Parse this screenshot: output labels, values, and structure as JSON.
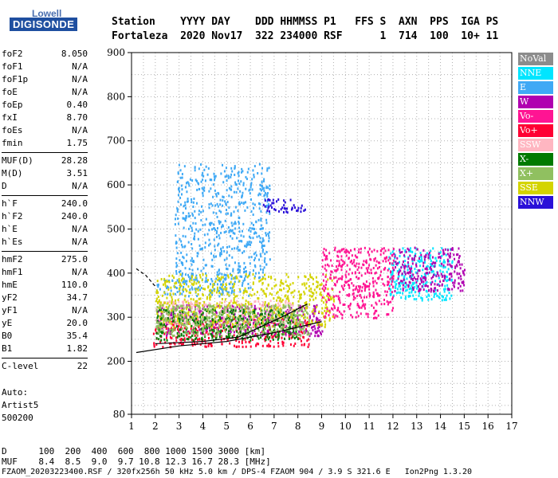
{
  "logo": {
    "top": "Lowell",
    "bottom": "DIGISONDE"
  },
  "header": {
    "line1": "Station    YYYY DAY    DDD HHMMSS P1   FFS S  AXN  PPS  IGA PS",
    "line2": "Fortaleza  2020 Nov17  322 234000 RSF      1  714  100  10+ 11"
  },
  "params": [
    {
      "group": [
        {
          "name": "foF2",
          "value": "8.050"
        },
        {
          "name": "foF1",
          "value": "N/A"
        },
        {
          "name": "foF1p",
          "value": "N/A"
        },
        {
          "name": "foE",
          "value": "N/A"
        },
        {
          "name": "foEp",
          "value": "0.40"
        },
        {
          "name": "fxI",
          "value": "8.70"
        },
        {
          "name": "foEs",
          "value": "N/A"
        },
        {
          "name": "fmin",
          "value": "1.75"
        }
      ]
    },
    {
      "group": [
        {
          "name": "MUF(D)",
          "value": "28.28"
        },
        {
          "name": "M(D)",
          "value": "3.51"
        },
        {
          "name": "D",
          "value": "N/A"
        }
      ]
    },
    {
      "group": [
        {
          "name": "h`F",
          "value": "240.0"
        },
        {
          "name": "h`F2",
          "value": "240.0"
        },
        {
          "name": "h`E",
          "value": "N/A"
        },
        {
          "name": "h`Es",
          "value": "N/A"
        }
      ]
    },
    {
      "group": [
        {
          "name": "hmF2",
          "value": "275.0"
        },
        {
          "name": "hmF1",
          "value": "N/A"
        },
        {
          "name": "hmE",
          "value": "110.0"
        },
        {
          "name": "yF2",
          "value": "34.7"
        },
        {
          "name": "yF1",
          "value": "N/A"
        },
        {
          "name": "yE",
          "value": "20.0"
        },
        {
          "name": "B0",
          "value": "35.4"
        },
        {
          "name": "B1",
          "value": "1.82"
        }
      ]
    },
    {
      "group": [
        {
          "name": "C-level",
          "value": "22"
        }
      ]
    }
  ],
  "auto": {
    "line1": "Auto:",
    "line2": "Artist5",
    "line3": "500200"
  },
  "legend": [
    {
      "label": "NoVal",
      "color": "#8c8c8c"
    },
    {
      "label": "NNE",
      "color": "#00e5ff"
    },
    {
      "label": "E",
      "color": "#3fa9f5"
    },
    {
      "label": "W",
      "color": "#b000b0"
    },
    {
      "label": "Vo-",
      "color": "#ff1493"
    },
    {
      "label": "Vo+",
      "color": "#ff0033"
    },
    {
      "label": "SSW",
      "color": "#ffb6c1"
    },
    {
      "label": "X-",
      "color": "#007a00"
    },
    {
      "label": "X+",
      "color": "#90c060"
    },
    {
      "label": "SSE",
      "color": "#d4d400"
    },
    {
      "label": "NNW",
      "color": "#2a10d8"
    }
  ],
  "chart_data": {
    "type": "scatter",
    "xlim": [
      1,
      17
    ],
    "ylim": [
      80,
      900
    ],
    "xticks": [
      1,
      2,
      3,
      4,
      5,
      6,
      7,
      8,
      9,
      10,
      11,
      12,
      13,
      14,
      15,
      16,
      17
    ],
    "yticks": [
      80,
      200,
      300,
      400,
      500,
      600,
      700,
      800,
      900
    ],
    "grid": true,
    "legend_position": "right",
    "clusters": [
      {
        "series": "E",
        "x": [
          2,
          6
        ],
        "y": [
          350,
          390
        ]
      },
      {
        "series": "E",
        "x": [
          2.8,
          6.8
        ],
        "y": [
          390,
          650
        ]
      },
      {
        "series": "Vo+",
        "x": [
          1.9,
          8.5
        ],
        "y": [
          235,
          300
        ]
      },
      {
        "series": "W",
        "x": [
          2,
          9
        ],
        "y": [
          260,
          330
        ]
      },
      {
        "series": "SSW",
        "x": [
          2,
          8
        ],
        "y": [
          280,
          340
        ]
      },
      {
        "series": "SSE",
        "x": [
          2,
          9.5
        ],
        "y": [
          280,
          400
        ]
      },
      {
        "series": "X-",
        "x": [
          2,
          8
        ],
        "y": [
          250,
          320
        ]
      },
      {
        "series": "X+",
        "x": [
          2,
          8.5
        ],
        "y": [
          260,
          330
        ]
      },
      {
        "series": "NNW",
        "x": [
          6.5,
          8.3
        ],
        "y": [
          540,
          570
        ]
      },
      {
        "series": "NNE",
        "x": [
          11.8,
          14.5
        ],
        "y": [
          340,
          460
        ]
      },
      {
        "series": "W",
        "x": [
          12,
          15
        ],
        "y": [
          360,
          460
        ]
      },
      {
        "series": "Vo-",
        "x": [
          9,
          12
        ],
        "y": [
          300,
          460
        ]
      }
    ],
    "traces": [
      {
        "color": "#000000",
        "points": [
          [
            1.2,
            220
          ],
          [
            3,
            235
          ],
          [
            5,
            245
          ],
          [
            7,
            265
          ],
          [
            9,
            290
          ]
        ]
      },
      {
        "color": "#000000",
        "points": [
          [
            2,
            240
          ],
          [
            4,
            245
          ],
          [
            5.5,
            255
          ],
          [
            6.5,
            280
          ],
          [
            7.5,
            305
          ],
          [
            8.4,
            330
          ]
        ]
      },
      {
        "color": "#000000",
        "points": [
          [
            1.2,
            410
          ],
          [
            1.6,
            395
          ],
          [
            2,
            370
          ]
        ],
        "dashed": true
      }
    ]
  },
  "footer": {
    "d_row": "D      100  200  400  600  800 1000 1500 3000 [km]",
    "muf_row": "MUF    8.4  8.5  9.0  9.7 10.8 12.3 16.7 28.3 [MHz]",
    "info": "FZAOM_20203223400.RSF / 320fx256h 50 kHz 5.0 km / DPS-4 FZAOM 904 / 3.9 S 321.6 E   Ion2Png 1.3.20"
  }
}
